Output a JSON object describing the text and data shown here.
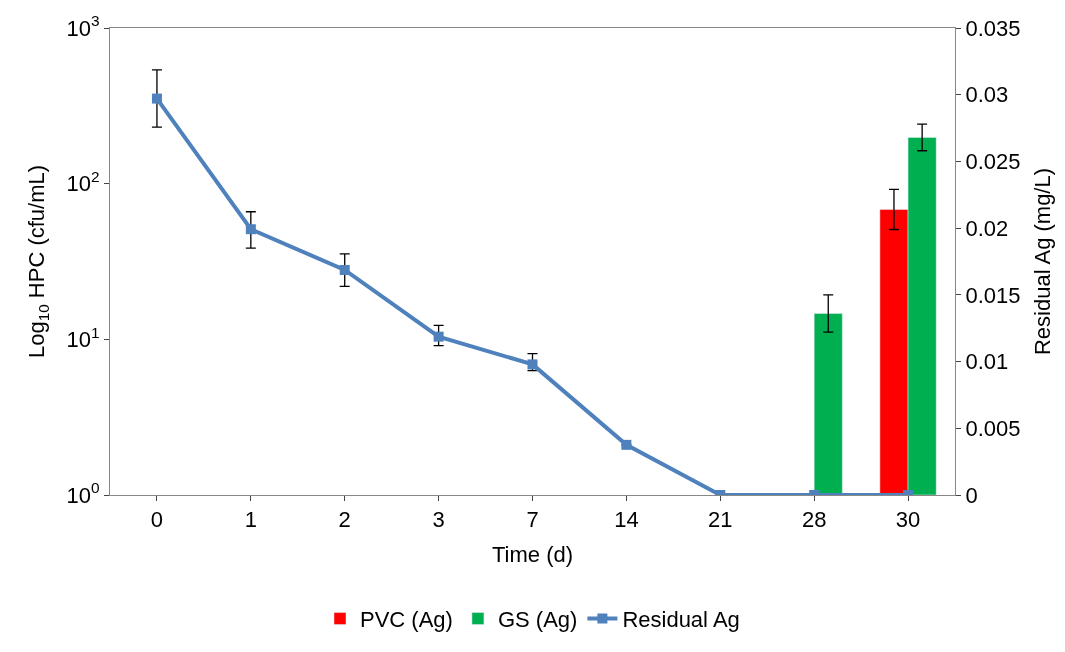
{
  "chart_data": {
    "type": "bar",
    "xlabel": "Time (d)",
    "ylabel": "Log$_{10}$ HPC (cfu/mL)",
    "y2label": "Residual Ag (mg/L)",
    "categories": [
      "0",
      "1",
      "2",
      "3",
      "7",
      "14",
      "21",
      "28",
      "30"
    ],
    "series": [
      {
        "name": "PVC (Ag)",
        "axis": "y2",
        "color": "#ff0000",
        "values": [
          null,
          null,
          null,
          null,
          null,
          null,
          null,
          null,
          0.0214
        ],
        "errors": [
          null,
          null,
          null,
          null,
          null,
          null,
          null,
          null,
          0.0015
        ]
      },
      {
        "name": "GS (Ag)",
        "axis": "y2",
        "color": "#00b050",
        "values": [
          null,
          null,
          null,
          null,
          null,
          null,
          null,
          0.0136,
          0.0268
        ],
        "errors": [
          null,
          null,
          null,
          null,
          null,
          null,
          null,
          0.0014,
          0.001
        ]
      },
      {
        "name": "Residual Ag",
        "type": "line",
        "color": "#4f81bd",
        "marker": "square",
        "values": [
          352,
          51,
          27.9,
          10.4,
          6.9,
          2.1,
          1,
          1,
          1
        ],
        "errors": [
          [
            231,
            538
          ],
          [
            38.5,
            66
          ],
          [
            21.9,
            35.4
          ],
          [
            9.1,
            12.3
          ],
          [
            6.3,
            8.1
          ],
          null,
          null,
          null,
          null
        ]
      }
    ],
    "log": "y",
    "ylim": [
      1,
      1000
    ],
    "yticks": [
      {
        "value": 1,
        "label": "10$^{0}$"
      },
      {
        "value": 10,
        "label": "10$^{1}$"
      },
      {
        "value": 100,
        "label": "10$^{2}$"
      },
      {
        "value": 1000,
        "label": "10$^{3}$"
      }
    ],
    "y2lim": [
      0,
      0.035
    ],
    "y2ticks": [
      0,
      0.005,
      0.01,
      0.015,
      0.02,
      0.025,
      0.03,
      0.035
    ],
    "legend": "bottom"
  }
}
